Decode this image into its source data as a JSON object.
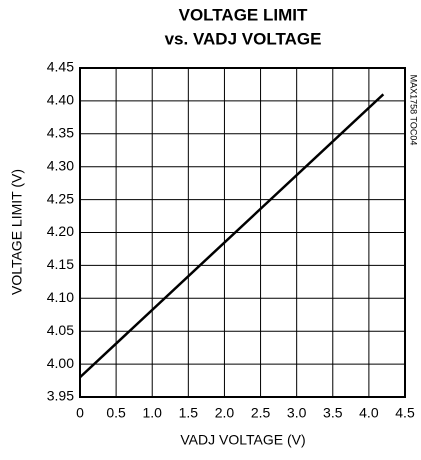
{
  "chart_data": {
    "type": "line",
    "title": [
      "VOLTAGE LIMIT",
      "vs. VADJ VOLTAGE"
    ],
    "x_label": "VADJ VOLTAGE (V)",
    "y_label": "VOLTAGE LIMIT (V)",
    "annotation": "MAX1758 TOC04",
    "x": [
      0,
      4.2
    ],
    "series": [
      {
        "name": "VOLTAGE LIMIT",
        "color": "#000000",
        "values": [
          3.98,
          4.41
        ]
      }
    ],
    "xlim": [
      0,
      4.5
    ],
    "xticks": [
      0,
      0.5,
      {
        "value": 1,
        "label": "1.0"
      },
      1.5,
      {
        "value": 2,
        "label": "2.0"
      },
      2.5,
      {
        "value": 3,
        "label": "3.0"
      },
      3.5,
      {
        "value": 4,
        "label": "4.0"
      },
      4.5
    ],
    "ylim": [
      3.95,
      4.45
    ],
    "yticks": [
      3.95,
      {
        "value": 4,
        "label": "4.00"
      },
      4.05,
      {
        "value": 4.1,
        "label": "4.10"
      },
      4.15,
      {
        "value": 4.2,
        "label": "4.20"
      },
      4.25,
      {
        "value": 4.3,
        "label": "4.30"
      },
      4.35,
      {
        "value": 4.4,
        "label": "4.40"
      },
      4.45
    ],
    "grid": true
  }
}
